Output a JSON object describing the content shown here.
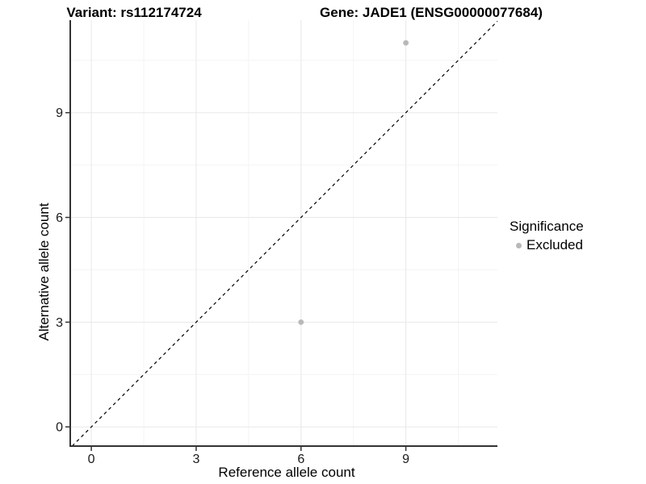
{
  "titles": {
    "variant": "Variant: rs112174724",
    "gene": "Gene: JADE1 (ENSG00000077684)"
  },
  "legend": {
    "title": "Significance",
    "items": [
      {
        "label": "Excluded",
        "color": "#b8b8b8"
      }
    ]
  },
  "chart_data": {
    "type": "scatter",
    "xlabel": "Reference allele count",
    "ylabel": "Alternative allele count",
    "xlim": [
      -0.58,
      11.62
    ],
    "ylim": [
      -0.55,
      11.65
    ],
    "x_ticks": [
      0,
      3,
      6,
      9
    ],
    "y_ticks": [
      0,
      3,
      6,
      9
    ],
    "x_minor_ticks": [
      1.5,
      4.5,
      7.5,
      10.5
    ],
    "y_minor_ticks": [
      1.5,
      4.5,
      7.5,
      10.5
    ],
    "grid": true,
    "legend_position": "right",
    "series": [
      {
        "name": "Excluded",
        "color": "#b8b8b8",
        "points": [
          {
            "x": 6,
            "y": 3
          },
          {
            "x": 9,
            "y": 11
          }
        ]
      }
    ],
    "identity_line": {
      "style": "dashed",
      "color": "#000000",
      "equation": "y = x"
    }
  },
  "colors": {
    "point": "#b8b8b8",
    "grid_major": "#e8e8e8",
    "grid_minor": "#f4f4f4",
    "axis": "#333333",
    "dashed_line": "#000000",
    "background": "#ffffff"
  }
}
